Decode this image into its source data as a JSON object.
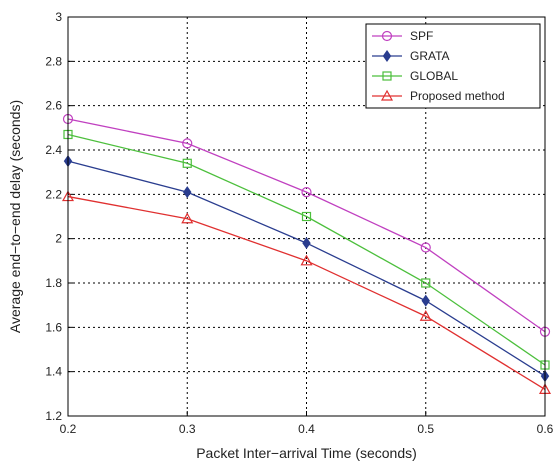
{
  "chart_data": {
    "type": "line",
    "title": "",
    "xlabel": "Packet Inter−arrival Time (seconds)",
    "ylabel": "Average end−to−end delay (seconds)",
    "xlim": [
      0.2,
      0.6
    ],
    "ylim": [
      1.2,
      3.0
    ],
    "x_ticks": [
      "0.2",
      "0.3",
      "0.4",
      "0.5",
      "0.6"
    ],
    "y_ticks": [
      "1.2",
      "1.4",
      "1.6",
      "1.8",
      "2",
      "2.2",
      "2.4",
      "2.6",
      "2.8",
      "3"
    ],
    "grid": true,
    "legend_position": "top-right",
    "x": [
      0.2,
      0.3,
      0.4,
      0.5,
      0.6
    ],
    "series": [
      {
        "name": "SPF",
        "values": [
          2.54,
          2.43,
          2.21,
          1.96,
          1.58
        ],
        "color": "#c040c0",
        "marker": "circle"
      },
      {
        "name": "GRATA",
        "values": [
          2.35,
          2.21,
          1.98,
          1.72,
          1.38
        ],
        "color": "#2a3d8f",
        "marker": "diamond"
      },
      {
        "name": "GLOBAL",
        "values": [
          2.47,
          2.34,
          2.1,
          1.8,
          1.43
        ],
        "color": "#4cbf3c",
        "marker": "square"
      },
      {
        "name": "Proposed method",
        "values": [
          2.19,
          2.09,
          1.9,
          1.65,
          1.32
        ],
        "color": "#e03030",
        "marker": "triangle"
      }
    ]
  }
}
